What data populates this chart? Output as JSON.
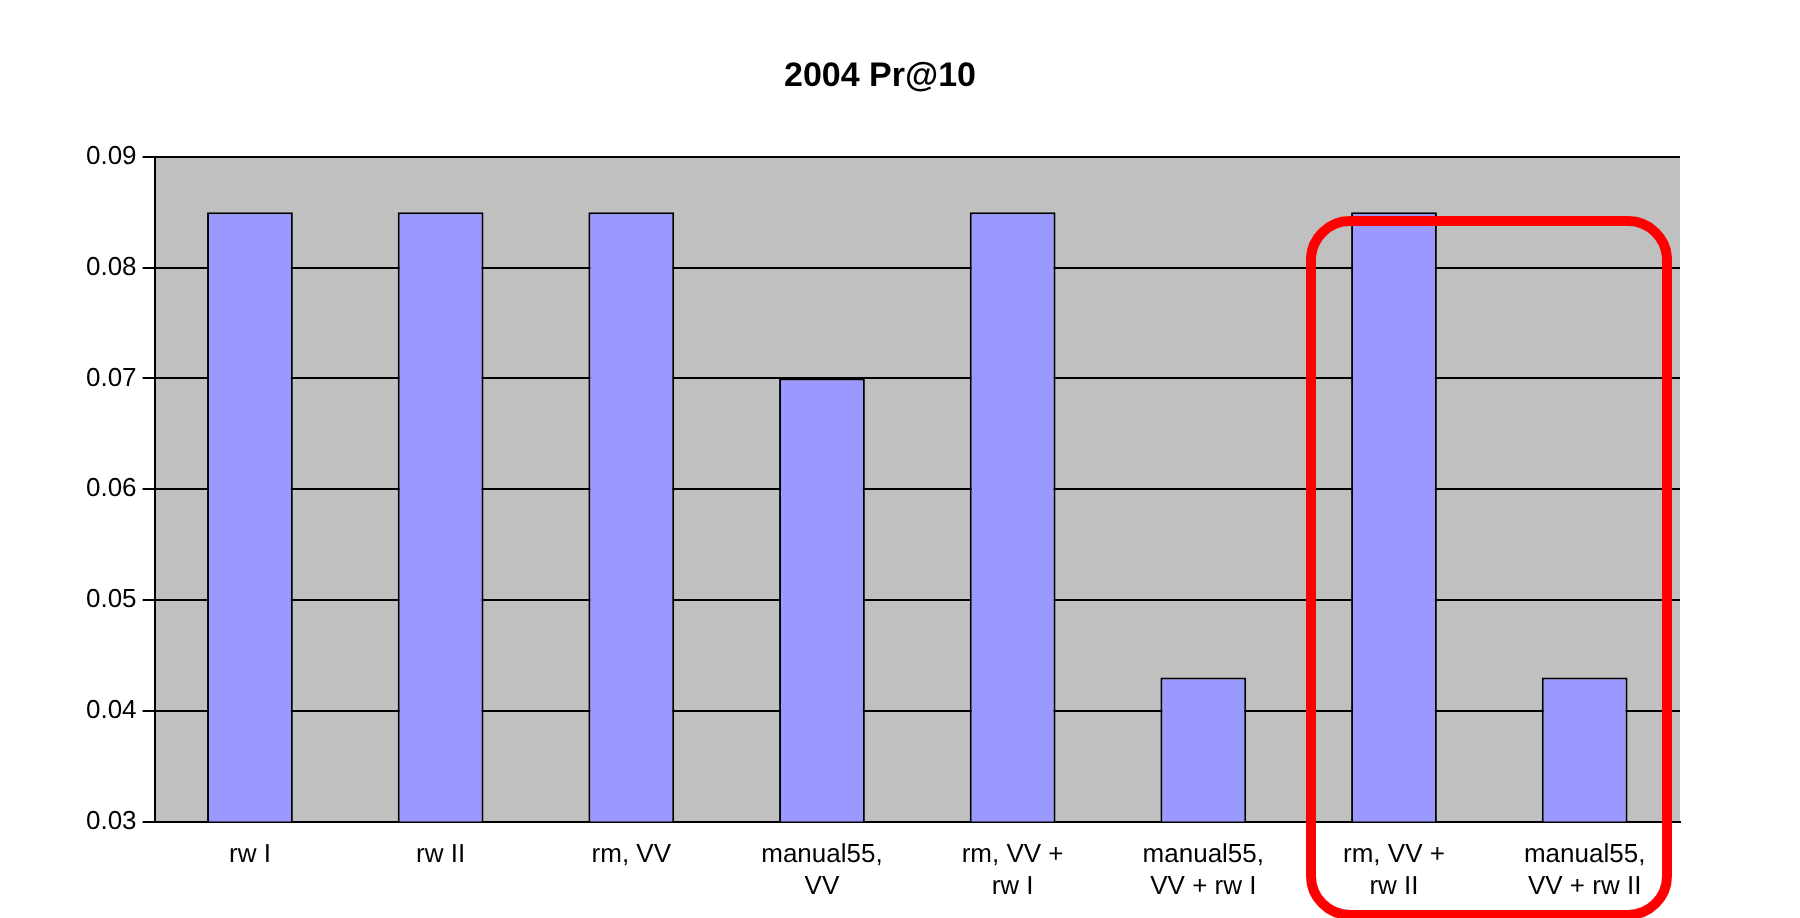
{
  "chart_data": {
    "type": "bar",
    "title": "2004 Pr@10",
    "categories": [
      "rw I",
      "rw II",
      "rm, VV",
      "manual55, VV",
      "rm, VV + rw I",
      "manual55, VV + rw I",
      "rm, VV + rw II",
      "manual55, VV + rw II"
    ],
    "values": [
      0.085,
      0.085,
      0.085,
      0.07,
      0.085,
      0.043,
      0.085,
      0.043
    ],
    "color": "#9999ff",
    "ylim": [
      0.03,
      0.09
    ],
    "yticks": [
      0.03,
      0.04,
      0.05,
      0.06,
      0.07,
      0.08,
      0.09
    ],
    "grid": "y",
    "legend": false
  }
}
